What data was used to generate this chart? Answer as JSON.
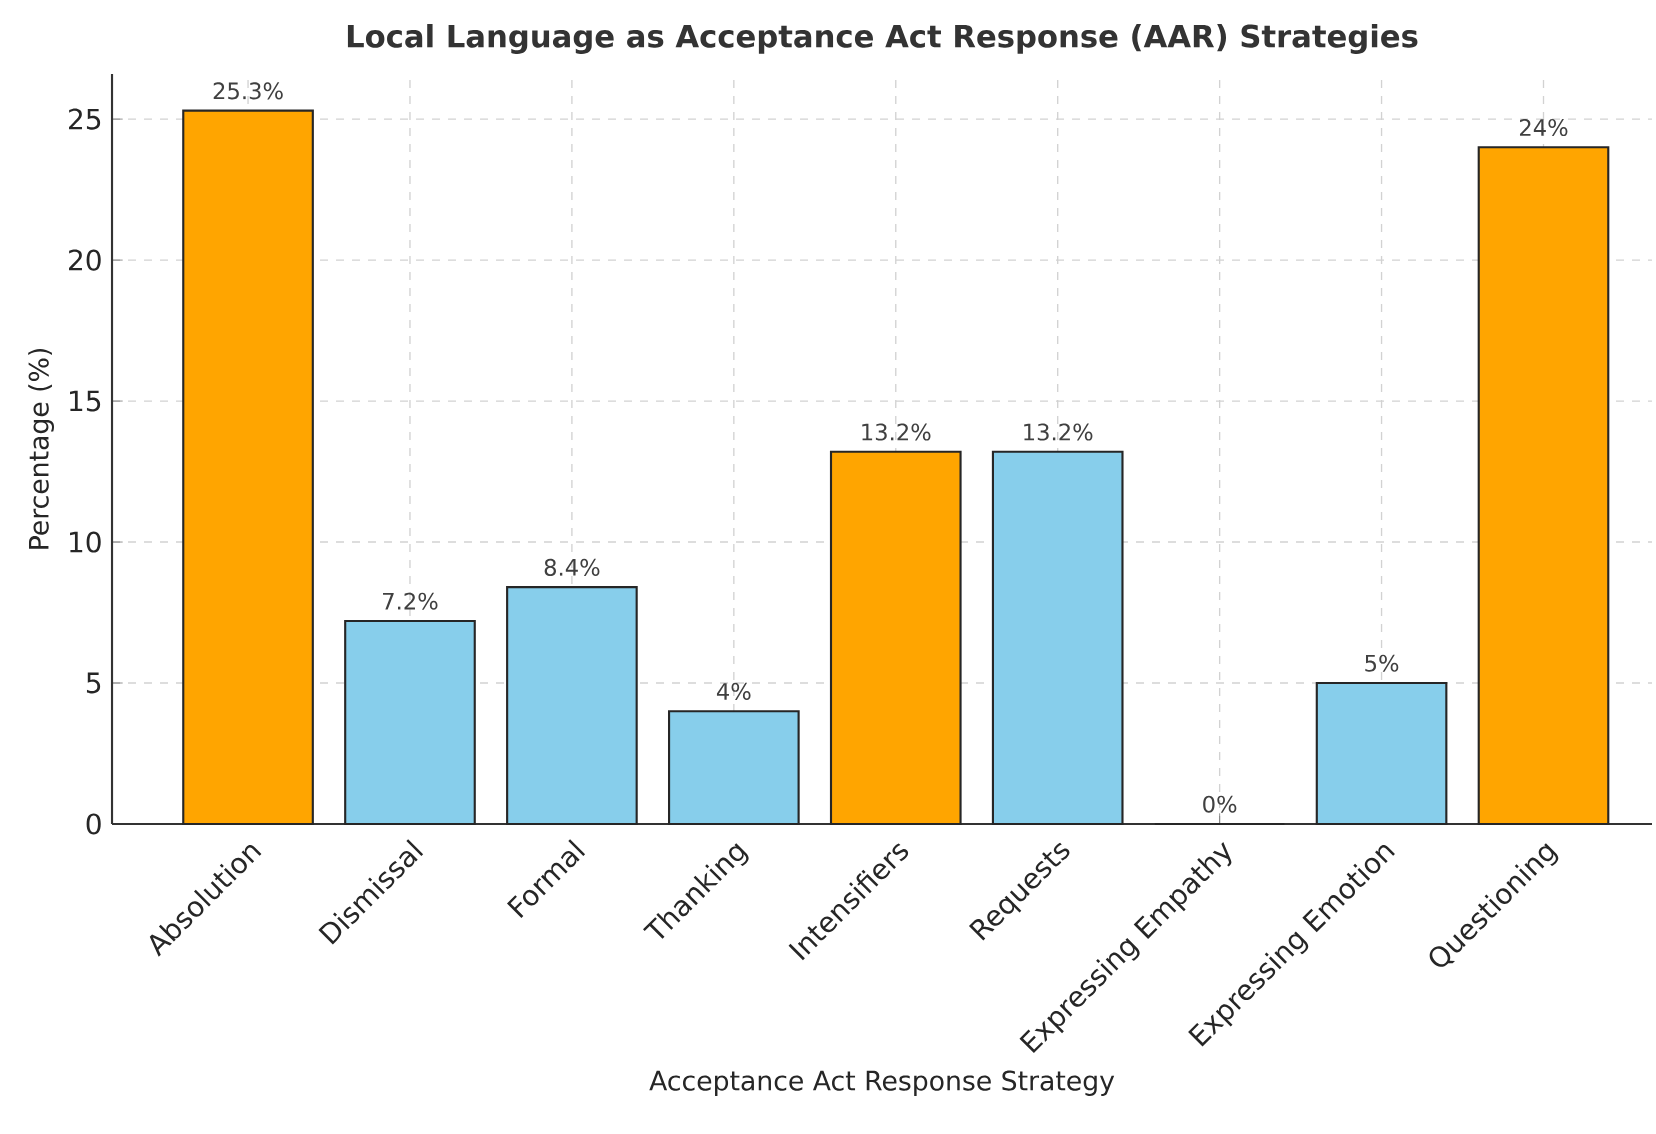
{
  "chart_data": {
    "type": "bar",
    "title": "Local Language as Acceptance Act Response (AAR) Strategies",
    "xlabel": "Acceptance Act Response Strategy",
    "ylabel": "Percentage (%)",
    "categories": [
      "Absolution",
      "Dismissal",
      "Formal",
      "Thanking",
      "Intensifiers",
      "Requests",
      "Expressing Empathy",
      "Expressing Emotion",
      "Questioning"
    ],
    "values": [
      25.3,
      7.2,
      8.4,
      4,
      13.2,
      13.2,
      0,
      5,
      24
    ],
    "colors": [
      "#ffa500",
      "#87ceeb",
      "#87ceeb",
      "#87ceeb",
      "#ffa500",
      "#87ceeb",
      "#87ceeb",
      "#87ceeb",
      "#ffa500"
    ],
    "value_labels": [
      "25.3%",
      "7.2%",
      "8.4%",
      "4%",
      "13.2%",
      "13.2%",
      "0%",
      "5%",
      "24%"
    ],
    "ylim": [
      0,
      26.6
    ],
    "yticks": [
      0,
      5,
      10,
      15,
      20,
      25
    ],
    "grid": true
  }
}
